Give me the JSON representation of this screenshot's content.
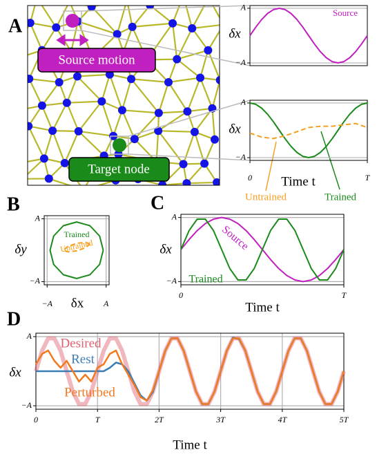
{
  "panel_labels": [
    "A",
    "B",
    "C",
    "D"
  ],
  "network": {
    "source_label": "Source motion",
    "target_label": "Target node"
  },
  "chart_data": [
    {
      "type": "line",
      "ylabel": "δx",
      "x": [
        0,
        0.05,
        0.1,
        0.15,
        0.2,
        0.25,
        0.3,
        0.35,
        0.4,
        0.45,
        0.5,
        0.55,
        0.6,
        0.65,
        0.7,
        0.75,
        0.8,
        0.85,
        0.9,
        0.95,
        1
      ],
      "series": [
        {
          "name": "Source",
          "color": "#c020c0",
          "values": [
            0,
            0.31,
            0.59,
            0.81,
            0.95,
            1,
            0.95,
            0.81,
            0.59,
            0.31,
            0,
            -0.31,
            -0.59,
            -0.81,
            -0.95,
            -1,
            -0.95,
            -0.81,
            -0.59,
            -0.31,
            0
          ]
        }
      ],
      "xlim": [
        0,
        1
      ],
      "ylim": [
        -1.1,
        1.1
      ],
      "yticks": [
        {
          "value": -1,
          "label": "−A"
        },
        {
          "value": 1,
          "label": "A"
        }
      ],
      "grid": true
    },
    {
      "type": "line",
      "ylabel": "δx",
      "xlabel": "Time t",
      "x": [
        0,
        0.05,
        0.1,
        0.15,
        0.2,
        0.25,
        0.3,
        0.35,
        0.4,
        0.45,
        0.5,
        0.55,
        0.6,
        0.65,
        0.7,
        0.75,
        0.8,
        0.85,
        0.9,
        0.95,
        1
      ],
      "series": [
        {
          "name": "Trained",
          "color": "#1a8a1a",
          "values": [
            1,
            0.95,
            0.81,
            0.59,
            0.31,
            0,
            -0.31,
            -0.59,
            -0.81,
            -0.95,
            -1,
            -0.95,
            -0.81,
            -0.59,
            -0.31,
            0,
            0.31,
            0.59,
            0.81,
            0.95,
            1
          ]
        },
        {
          "name": "Untrained",
          "color": "#f5a020",
          "dash": true,
          "x": [
            0,
            0.1,
            0.2,
            0.3,
            0.4,
            0.5,
            0.6,
            0.7,
            0.8,
            0.9,
            1
          ],
          "values": [
            -0.1,
            -0.25,
            -0.3,
            -0.2,
            -0.05,
            0.1,
            0.15,
            0.15,
            0.2,
            0.25,
            0.1
          ]
        }
      ],
      "xlim": [
        0,
        1
      ],
      "ylim": [
        -1.1,
        1.1
      ],
      "xticks": [
        0,
        {
          "value": 1,
          "label": "T"
        }
      ],
      "yticks": [
        {
          "value": -1,
          "label": "−A"
        },
        {
          "value": 1,
          "label": "A"
        }
      ],
      "grid": true
    },
    {
      "type": "line",
      "ylabel": "δy",
      "xlabel": "δx",
      "series": [
        {
          "name": "Trained",
          "color": "#1a8a1a",
          "x": [
            0.9,
            0.78,
            0.45,
            0,
            -0.45,
            -0.78,
            -0.9,
            -0.78,
            -0.45,
            0,
            0.45,
            0.78,
            0.9
          ],
          "values": [
            0,
            0.45,
            0.78,
            0.9,
            0.78,
            0.45,
            0,
            -0.45,
            -0.78,
            -0.9,
            -0.78,
            -0.45,
            0
          ]
        },
        {
          "name": "Untrained",
          "color": "#f5a020",
          "dash": true,
          "x": [
            0.45,
            0.3,
            0,
            -0.3,
            -0.45,
            -0.3,
            0,
            0.3,
            0.45
          ],
          "values": [
            0.2,
            0.25,
            0.22,
            0.12,
            0,
            -0.05,
            -0.02,
            0.08,
            0.2
          ]
        }
      ],
      "xlim": [
        -1.1,
        1.1
      ],
      "ylim": [
        -1.1,
        1.1
      ],
      "xticks": [
        {
          "value": -1,
          "label": "−A"
        },
        {
          "value": 1,
          "label": "A"
        }
      ],
      "yticks": [
        {
          "value": -1,
          "label": "−A"
        },
        {
          "value": 1,
          "label": "A"
        }
      ],
      "grid": true
    },
    {
      "type": "line",
      "ylabel": "δx",
      "xlabel": "Time t",
      "x": [
        0,
        0.05,
        0.1,
        0.15,
        0.2,
        0.25,
        0.3,
        0.35,
        0.4,
        0.45,
        0.5,
        0.55,
        0.6,
        0.65,
        0.7,
        0.75,
        0.8,
        0.85,
        0.9,
        0.95,
        1
      ],
      "series": [
        {
          "name": "Source",
          "color": "#c020c0",
          "values": [
            0,
            0.31,
            0.59,
            0.81,
            0.95,
            1,
            0.95,
            0.81,
            0.59,
            0.31,
            0,
            -0.31,
            -0.59,
            -0.81,
            -0.95,
            -1,
            -0.95,
            -0.81,
            -0.59,
            -0.31,
            0
          ]
        },
        {
          "name": "Trained",
          "color": "#1a8a1a",
          "values": [
            0,
            0.59,
            0.95,
            0.95,
            0.59,
            0,
            -0.59,
            -0.95,
            -0.95,
            -0.59,
            0,
            0.59,
            0.95,
            0.95,
            0.59,
            0,
            -0.59,
            -0.95,
            -0.95,
            -0.59,
            0
          ]
        }
      ],
      "xlim": [
        0,
        1
      ],
      "ylim": [
        -1.1,
        1.1
      ],
      "xticks": [
        0,
        {
          "value": 1,
          "label": "T"
        }
      ],
      "yticks": [
        {
          "value": -1,
          "label": "−A"
        },
        {
          "value": 1,
          "label": "A"
        }
      ],
      "grid": true
    },
    {
      "type": "line",
      "ylabel": "δx",
      "xlabel": "Time t",
      "x": [
        0,
        0.1,
        0.2,
        0.3,
        0.4,
        0.5,
        0.6,
        0.7,
        0.8,
        0.9,
        1,
        1.1,
        1.2,
        1.3,
        1.4,
        1.5,
        1.6,
        1.7,
        1.8,
        1.9,
        2,
        2.1,
        2.2,
        2.3,
        2.4,
        2.5,
        2.6,
        2.7,
        2.8,
        2.9,
        3,
        3.1,
        3.2,
        3.3,
        3.4,
        3.5,
        3.6,
        3.7,
        3.8,
        3.9,
        4,
        4.1,
        4.2,
        4.3,
        4.4,
        4.5,
        4.6,
        4.7,
        4.8,
        4.9,
        5
      ],
      "series": [
        {
          "name": "Desired",
          "color": "#e06070",
          "width": 6,
          "opacity": 0.45,
          "values": [
            0,
            0.59,
            0.95,
            0.95,
            0.59,
            0,
            -0.59,
            -0.95,
            -0.95,
            -0.59,
            0,
            0.59,
            0.95,
            0.95,
            0.59,
            0,
            -0.59,
            -0.95,
            -0.95,
            -0.59,
            0,
            0.59,
            0.95,
            0.95,
            0.59,
            0,
            -0.59,
            -0.95,
            -0.95,
            -0.59,
            0,
            0.59,
            0.95,
            0.95,
            0.59,
            0,
            -0.59,
            -0.95,
            -0.95,
            -0.59,
            0,
            0.59,
            0.95,
            0.95,
            0.59,
            0,
            -0.59,
            -0.95,
            -0.95,
            -0.59,
            0
          ]
        },
        {
          "name": "Rest",
          "color": "#3b7db5",
          "width": 2.5,
          "values": [
            0,
            0,
            0,
            0,
            0,
            0,
            0,
            0,
            0,
            0,
            0,
            0,
            0.1,
            0.25,
            0.2,
            0,
            -0.35,
            -0.7,
            -0.85,
            -0.6,
            0,
            0.59,
            0.95,
            0.95,
            0.59,
            0,
            -0.59,
            -0.95,
            -0.95,
            -0.59,
            0,
            0.59,
            0.97,
            0.93,
            0.59,
            0,
            -0.59,
            -0.95,
            -0.95,
            -0.59,
            0,
            0.59,
            0.95,
            0.95,
            0.59,
            0,
            -0.59,
            -0.95,
            -0.95,
            -0.59,
            0
          ]
        },
        {
          "name": "Perturbed",
          "color": "#f07a20",
          "width": 2.5,
          "values": [
            0.2,
            0.5,
            0.6,
            0.3,
            0.1,
            0.3,
            0,
            -0.3,
            -0.1,
            -0.3,
            0.1,
            0.2,
            0.5,
            0.6,
            0.2,
            -0.1,
            -0.4,
            -0.75,
            -0.85,
            -0.55,
            0,
            0.59,
            0.95,
            0.95,
            0.59,
            0,
            -0.59,
            -0.95,
            -0.95,
            -0.59,
            0,
            0.59,
            0.95,
            0.95,
            0.59,
            0,
            -0.59,
            -0.95,
            -0.95,
            -0.59,
            0,
            0.59,
            0.95,
            0.95,
            0.59,
            0,
            -0.59,
            -0.95,
            -0.95,
            -0.59,
            0
          ]
        }
      ],
      "xlim": [
        0,
        5
      ],
      "ylim": [
        -1.1,
        1.1
      ],
      "xticks": [
        0,
        {
          "value": 1,
          "label": "T"
        },
        {
          "value": 2,
          "label": "2T"
        },
        {
          "value": 3,
          "label": "3T"
        },
        {
          "value": 4,
          "label": "4T"
        },
        {
          "value": 5,
          "label": "5T"
        }
      ],
      "yticks": [
        {
          "value": -1,
          "label": "−A"
        },
        {
          "value": 1,
          "label": "A"
        }
      ],
      "grid": true
    }
  ]
}
